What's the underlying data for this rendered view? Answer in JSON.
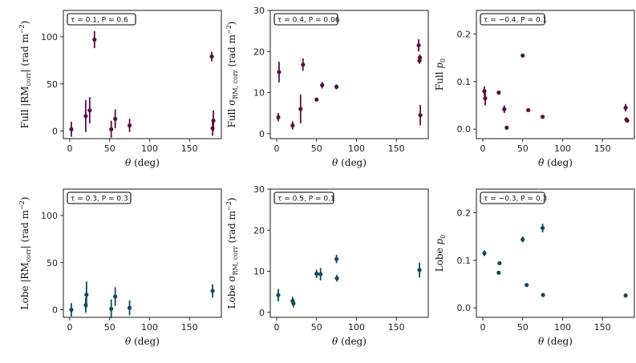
{
  "colors": {
    "full": "#5b0f3e",
    "lobe": "#0f4a5a"
  },
  "chart_data": [
    {
      "type": "scatter",
      "id": "full-rm",
      "color_key": "full",
      "title": "",
      "xlabel": "θ (deg)",
      "ylabel": "Full |RM_corr| (rad m^-2)",
      "ylabel_parts": [
        "Full |RM",
        "corr",
        "| (rad m",
        "−2",
        ")"
      ],
      "annotation": "τ = 0.1, P = 0.6",
      "xlim": [
        -8,
        190
      ],
      "ylim": [
        -8,
        128
      ],
      "xticks": [
        0,
        50,
        100,
        150
      ],
      "yticks": [
        0,
        50,
        100
      ],
      "points": [
        {
          "x": 2,
          "y": 2,
          "err": 8
        },
        {
          "x": 20,
          "y": 16,
          "err": 17
        },
        {
          "x": 25,
          "y": 22,
          "err": 14
        },
        {
          "x": 31,
          "y": 97,
          "err": 9
        },
        {
          "x": 52,
          "y": 2,
          "err": 9
        },
        {
          "x": 57,
          "y": 13,
          "err": 10
        },
        {
          "x": 75,
          "y": 6,
          "err": 7
        },
        {
          "x": 178,
          "y": 79,
          "err": 5
        },
        {
          "x": 179,
          "y": 3,
          "err": 8
        },
        {
          "x": 180,
          "y": 11,
          "err": 11
        }
      ]
    },
    {
      "type": "scatter",
      "id": "full-sigma",
      "color_key": "full",
      "title": "",
      "xlabel": "θ (deg)",
      "ylabel": "Full σ_RM,corr (rad m^-2)",
      "ylabel_parts": [
        "Full σ",
        "RM, corr",
        " (rad m",
        "−2",
        ")"
      ],
      "annotation": "τ = 0.4, P = 0.06",
      "xlim": [
        -8,
        190
      ],
      "ylim": [
        -1.2,
        30
      ],
      "xticks": [
        0,
        50,
        100,
        150
      ],
      "yticks": [
        0,
        10,
        20,
        30
      ],
      "points": [
        {
          "x": 2,
          "y": 4,
          "err": 1
        },
        {
          "x": 3,
          "y": 15,
          "err": 2.5
        },
        {
          "x": 20,
          "y": 2,
          "err": 1
        },
        {
          "x": 30,
          "y": 6,
          "err": 3.5
        },
        {
          "x": 33,
          "y": 16.8,
          "err": 1.5
        },
        {
          "x": 50,
          "y": 8.3,
          "err": 0.3
        },
        {
          "x": 57,
          "y": 11.8,
          "err": 0.8
        },
        {
          "x": 75,
          "y": 11.4,
          "err": 0.6
        },
        {
          "x": 178,
          "y": 21.5,
          "err": 1.5
        },
        {
          "x": 179,
          "y": 17.8,
          "err": 0.8
        },
        {
          "x": 179.5,
          "y": 18.5,
          "err": 0.8
        },
        {
          "x": 180,
          "y": 4.5,
          "err": 2.5
        }
      ]
    },
    {
      "type": "scatter",
      "id": "full-p0",
      "color_key": "full",
      "title": "",
      "xlabel": "θ (deg)",
      "ylabel": "Full p_0",
      "ylabel_parts": [
        "Full ",
        "p",
        "0"
      ],
      "annotation": "τ = −0.4, P = 0.1",
      "xlim": [
        -8,
        190
      ],
      "ylim": [
        -0.02,
        0.25
      ],
      "xticks": [
        0,
        50,
        100,
        150
      ],
      "yticks": [
        0.0,
        0.1,
        0.2
      ],
      "points": [
        {
          "x": 2,
          "y": 0.08,
          "err": 0.01
        },
        {
          "x": 3,
          "y": 0.065,
          "err": 0.015
        },
        {
          "x": 20,
          "y": 0.077,
          "err": 0.003
        },
        {
          "x": 27,
          "y": 0.042,
          "err": 0.008
        },
        {
          "x": 30,
          "y": 0.003,
          "err": 0.002
        },
        {
          "x": 50,
          "y": 0.155,
          "err": 0.003
        },
        {
          "x": 57,
          "y": 0.04,
          "err": 0.003
        },
        {
          "x": 75,
          "y": 0.026,
          "err": 0.002
        },
        {
          "x": 179,
          "y": 0.045,
          "err": 0.008
        },
        {
          "x": 180,
          "y": 0.02,
          "err": 0.005
        },
        {
          "x": 181,
          "y": 0.018,
          "err": 0.003
        }
      ]
    },
    {
      "type": "scatter",
      "id": "lobe-rm",
      "color_key": "lobe",
      "title": "",
      "xlabel": "θ (deg)",
      "ylabel": "Lobe |RM_corr| (rad m^-2)",
      "ylabel_parts": [
        "Lobe |RM",
        "corr",
        "| (rad m",
        "−2",
        ")"
      ],
      "annotation": "τ = 0.3, P = 0.3",
      "xlim": [
        -8,
        190
      ],
      "ylim": [
        -8,
        128
      ],
      "xticks": [
        0,
        50,
        100,
        150
      ],
      "yticks": [
        0,
        50,
        100
      ],
      "points": [
        {
          "x": 2,
          "y": 0,
          "err": 7
        },
        {
          "x": 20,
          "y": 5,
          "err": 8
        },
        {
          "x": 21,
          "y": 16,
          "err": 14
        },
        {
          "x": 52,
          "y": 1,
          "err": 10
        },
        {
          "x": 57,
          "y": 14,
          "err": 10
        },
        {
          "x": 75,
          "y": 2,
          "err": 8
        },
        {
          "x": 179,
          "y": 20,
          "err": 7
        }
      ]
    },
    {
      "type": "scatter",
      "id": "lobe-sigma",
      "color_key": "lobe",
      "title": "",
      "xlabel": "θ (deg)",
      "ylabel": "Lobe σ_RM,corr (rad m^-2)",
      "ylabel_parts": [
        "Lobe σ",
        "RM, corr",
        " (rad m",
        "−2",
        ")"
      ],
      "annotation": "τ = 0.5, P = 0.1",
      "xlim": [
        -8,
        190
      ],
      "ylim": [
        -1.2,
        30
      ],
      "xticks": [
        0,
        50,
        100,
        150
      ],
      "yticks": [
        0,
        10,
        20,
        30
      ],
      "points": [
        {
          "x": 2,
          "y": 4.2,
          "err": 1.5
        },
        {
          "x": 20,
          "y": 2.8,
          "err": 1
        },
        {
          "x": 21,
          "y": 2.2,
          "err": 1
        },
        {
          "x": 50,
          "y": 9.4,
          "err": 1
        },
        {
          "x": 55,
          "y": 9.3,
          "err": 1.5
        },
        {
          "x": 75,
          "y": 13,
          "err": 1
        },
        {
          "x": 75.5,
          "y": 8.3,
          "err": 0.8
        },
        {
          "x": 179,
          "y": 10.3,
          "err": 1.8
        }
      ]
    },
    {
      "type": "scatter",
      "id": "lobe-p0",
      "color_key": "lobe",
      "title": "",
      "xlabel": "θ (deg)",
      "ylabel": "Lobe p_0",
      "ylabel_parts": [
        "Lobe ",
        "p",
        "0"
      ],
      "annotation": "τ = −0.3, P = 0.3",
      "xlim": [
        -8,
        190
      ],
      "ylim": [
        -0.02,
        0.25
      ],
      "xticks": [
        0,
        50,
        100,
        150
      ],
      "yticks": [
        0.0,
        0.1,
        0.2
      ],
      "points": [
        {
          "x": 2,
          "y": 0.115,
          "err": 0.006
        },
        {
          "x": 20,
          "y": 0.074,
          "err": 0.003
        },
        {
          "x": 21,
          "y": 0.094,
          "err": 0.003
        },
        {
          "x": 50,
          "y": 0.144,
          "err": 0.006
        },
        {
          "x": 55,
          "y": 0.048,
          "err": 0.004
        },
        {
          "x": 75,
          "y": 0.168,
          "err": 0.009
        },
        {
          "x": 75.5,
          "y": 0.027,
          "err": 0.002
        },
        {
          "x": 179,
          "y": 0.026,
          "err": 0.002
        }
      ]
    }
  ]
}
